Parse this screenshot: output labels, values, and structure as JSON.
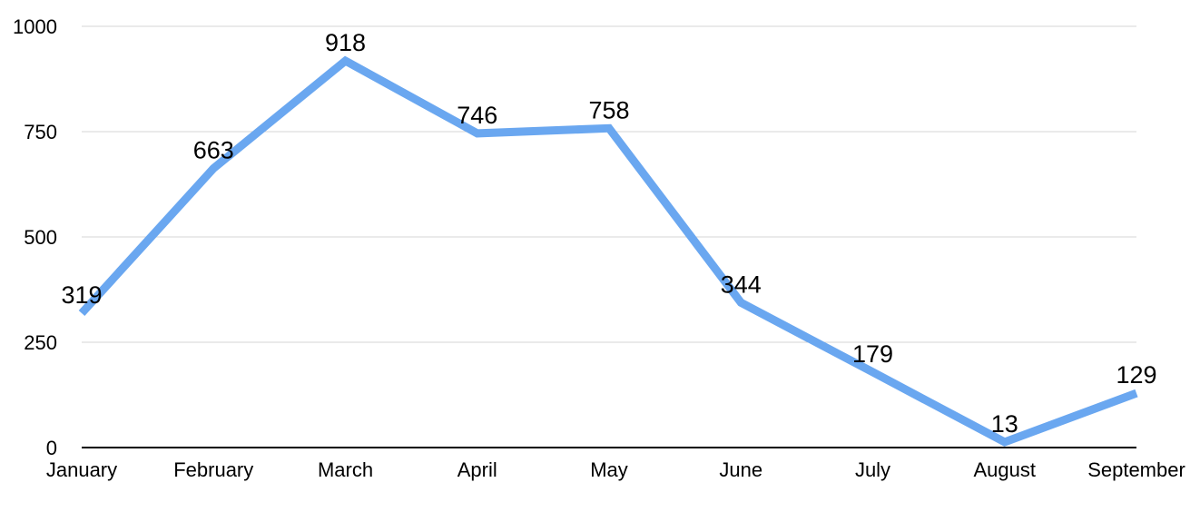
{
  "chart_data": {
    "type": "line",
    "categories": [
      "January",
      "February",
      "March",
      "April",
      "May",
      "June",
      "July",
      "August",
      "September"
    ],
    "series": [
      {
        "values": [
          319,
          663,
          918,
          746,
          758,
          344,
          179,
          13,
          129
        ],
        "color": "#6aa7f0"
      }
    ],
    "ylim": [
      0,
      1000
    ],
    "yticks": [
      0,
      250,
      500,
      750,
      1000
    ],
    "ytick_labels": [
      "0",
      "250",
      "500",
      "750",
      "1000"
    ],
    "grid": true,
    "data_labels": true,
    "title": "",
    "xlabel": "",
    "ylabel": ""
  }
}
